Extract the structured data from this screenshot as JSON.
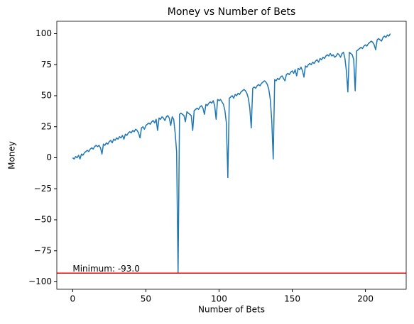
{
  "chart_data": {
    "type": "line",
    "title": "Money vs Number of Bets",
    "xlabel": "Number of Bets",
    "ylabel": "Money",
    "series": [
      {
        "name": "Money",
        "color": "#1f77b4",
        "values": [
          0,
          -1,
          1,
          0,
          2,
          -1,
          3,
          2,
          4,
          5,
          6,
          5,
          7,
          8,
          7,
          9,
          10,
          9,
          10,
          8,
          3,
          11,
          10,
          12,
          11,
          13,
          14,
          12,
          15,
          14,
          16,
          15,
          17,
          16,
          18,
          15,
          19,
          18,
          20,
          21,
          20,
          22,
          21,
          23,
          22,
          20,
          16,
          24,
          25,
          23,
          26,
          27,
          28,
          27,
          29,
          30,
          28,
          31,
          22,
          32,
          31,
          33,
          32,
          30,
          33,
          34,
          32,
          26,
          33,
          31,
          20,
          5,
          -93,
          35,
          36,
          35,
          34,
          29,
          37,
          36,
          35,
          34,
          22,
          38,
          39,
          40,
          39,
          41,
          42,
          40,
          35,
          43,
          42,
          44,
          45,
          44,
          46,
          42,
          31,
          47,
          46,
          47,
          45,
          43,
          38,
          28,
          -16,
          48,
          49,
          50,
          48,
          51,
          50,
          52,
          51,
          53,
          54,
          55,
          54,
          52,
          48,
          40,
          24,
          56,
          57,
          56,
          58,
          59,
          58,
          60,
          61,
          62,
          61,
          59,
          55,
          47,
          30,
          -1,
          63,
          62,
          64,
          63,
          65,
          66,
          64,
          62,
          67,
          68,
          67,
          69,
          70,
          68,
          71,
          66,
          72,
          71,
          73,
          70,
          65,
          74,
          73,
          75,
          76,
          75,
          77,
          76,
          78,
          79,
          77,
          80,
          79,
          81,
          80,
          82,
          83,
          82,
          84,
          82,
          83,
          81,
          82,
          84,
          83,
          81,
          84,
          85,
          80,
          70,
          53,
          85,
          84,
          83,
          79,
          54,
          86,
          87,
          88,
          89,
          88,
          90,
          91,
          90,
          92,
          93,
          94,
          93,
          91,
          87,
          95,
          96,
          95,
          94,
          97,
          98,
          97,
          99,
          98,
          100
        ]
      }
    ],
    "xlim": [
      -10.85,
      227.85
    ],
    "xticks": [
      0,
      50,
      100,
      150,
      200
    ],
    "ylim": [
      -106,
      110
    ],
    "yticks": [
      {
        "value": -100,
        "label": "−100"
      },
      {
        "value": -75,
        "label": "−75"
      },
      {
        "value": -50,
        "label": "−50"
      },
      {
        "value": -25,
        "label": "−25"
      },
      0,
      25,
      50,
      75,
      100
    ],
    "hline": {
      "value": -93,
      "color": "red"
    },
    "annotation": "Minimum: -93.0"
  }
}
